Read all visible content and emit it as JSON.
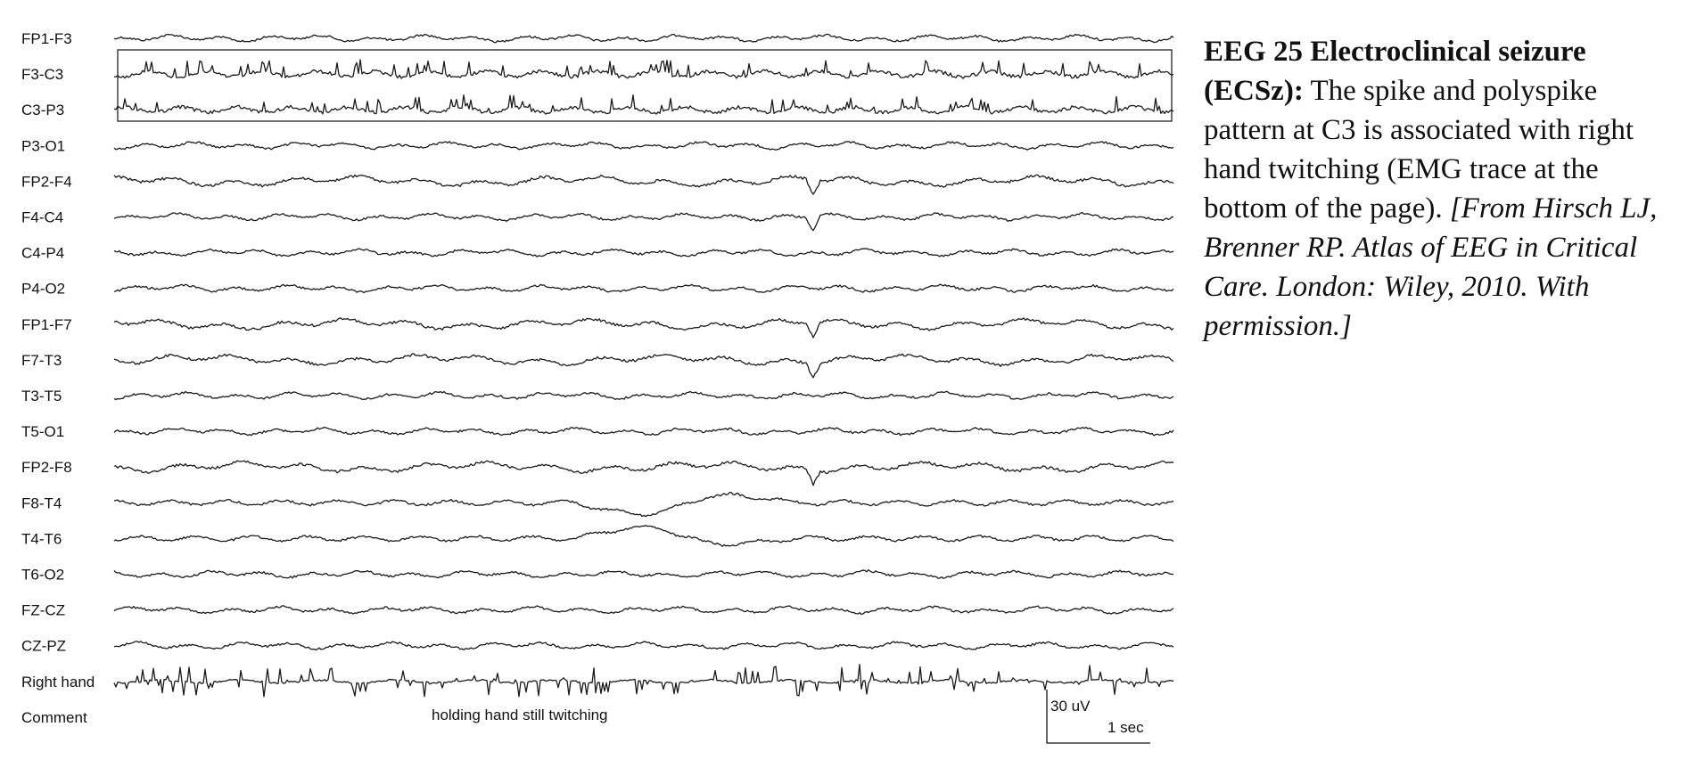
{
  "caption": {
    "title": "EEG 25 Electroclinical seizure (ECSz):",
    "body": " The spike and polyspike pattern at C3 is associated with right hand twitching (EMG trace at the bottom of the page).",
    "citation": " [From Hirsch LJ, Brenner RP.  Atlas of EEG in Critical Care.  London: Wiley, 2010. With permission.]"
  },
  "chart_data": {
    "type": "line",
    "channels": [
      {
        "label": "FP1-F3",
        "style": "low"
      },
      {
        "label": "F3-C3",
        "style": "spiky",
        "highlighted": true
      },
      {
        "label": "C3-P3",
        "style": "spiky",
        "highlighted": true
      },
      {
        "label": "P3-O1",
        "style": "low"
      },
      {
        "label": "FP2-F4",
        "style": "medium",
        "artifact": true
      },
      {
        "label": "F4-C4",
        "style": "low",
        "artifact": true
      },
      {
        "label": "C4-P4",
        "style": "low"
      },
      {
        "label": "P4-O2",
        "style": "low"
      },
      {
        "label": "FP1-F7",
        "style": "medium",
        "artifact": true
      },
      {
        "label": "F7-T3",
        "style": "medium",
        "artifact": true
      },
      {
        "label": "T3-T5",
        "style": "low"
      },
      {
        "label": "T5-O1",
        "style": "low"
      },
      {
        "label": "FP2-F8",
        "style": "medium",
        "artifact": true
      },
      {
        "label": "F8-T4",
        "style": "slow_wave"
      },
      {
        "label": "T4-T6",
        "style": "slow_wave_inverse"
      },
      {
        "label": "T6-O2",
        "style": "low"
      },
      {
        "label": "FZ-CZ",
        "style": "low"
      },
      {
        "label": "CZ-PZ",
        "style": "low"
      },
      {
        "label": "Right hand",
        "style": "emg"
      },
      {
        "label": "Comment",
        "style": "none"
      }
    ],
    "comment": "holding hand still twitching",
    "scale": {
      "amplitude": "30 uV",
      "time": "1 sec"
    }
  }
}
